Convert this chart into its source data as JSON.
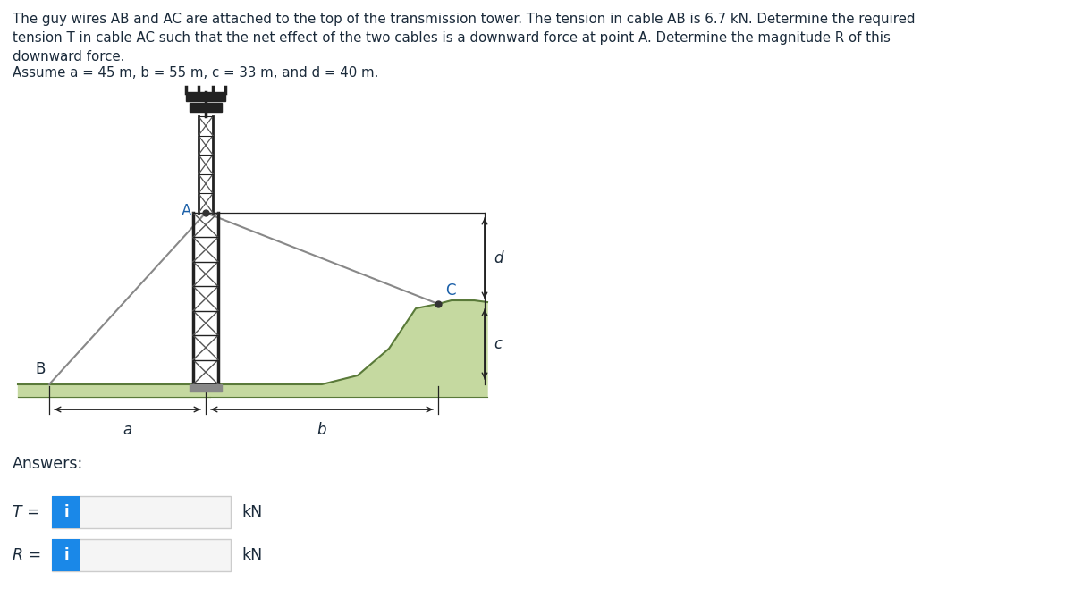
{
  "bg_color": "#ffffff",
  "text_color": "#1a2a3a",
  "label_blue": "#1a5fa8",
  "line1": "The guy wires AB and AC are attached to the top of the transmission tower. The tension in cable AB is 6.7 kN. Determine the required",
  "line2": "tension T in cable AC such that the net effect of the two cables is a downward force at point A. Determine the magnitude R of this",
  "line3": "downward force.",
  "line4": "Assume a = 45 m, b = 55 m, c = 33 m, and d = 40 m.",
  "answers_label": "Answers:",
  "T_label": "T =",
  "R_label": "R =",
  "kN_label": "kN",
  "i_label": "i",
  "input_blue": "#1a88e8",
  "input_bg": "#f5f5f5",
  "input_border": "#cccccc",
  "tower_dark": "#222222",
  "tower_mid": "#555555",
  "ground_fill": "#c5d9a0",
  "ground_line": "#5a7a3a",
  "cable_color": "#888888",
  "dim_color": "#222222"
}
